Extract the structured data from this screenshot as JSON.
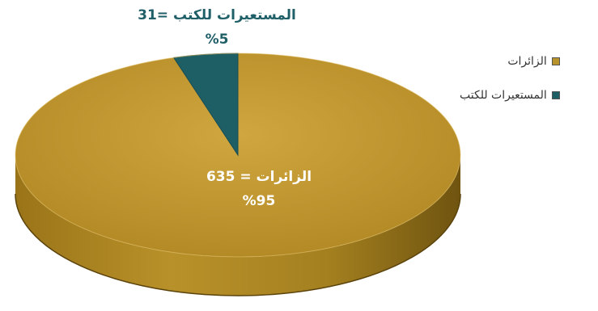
{
  "chart_data": {
    "type": "pie",
    "title": "",
    "series": [
      {
        "name": "",
        "values": [
          635,
          31
        ],
        "percents": [
          "%95",
          "%5"
        ]
      }
    ],
    "categories": [
      "الزائرات",
      "المستعيرات للكتب"
    ],
    "data_labels": [
      {
        "line1": "الزائرات = 635",
        "line2": "%95"
      },
      {
        "line1": "المستعيرات للكتب =31",
        "line2": "%5"
      }
    ],
    "legend": {
      "placement": "right",
      "items": [
        "الزائرات",
        "المستعيرات للكتب"
      ]
    },
    "colors": [
      "#b8922a",
      "#1e5f66"
    ],
    "style": "3d"
  }
}
